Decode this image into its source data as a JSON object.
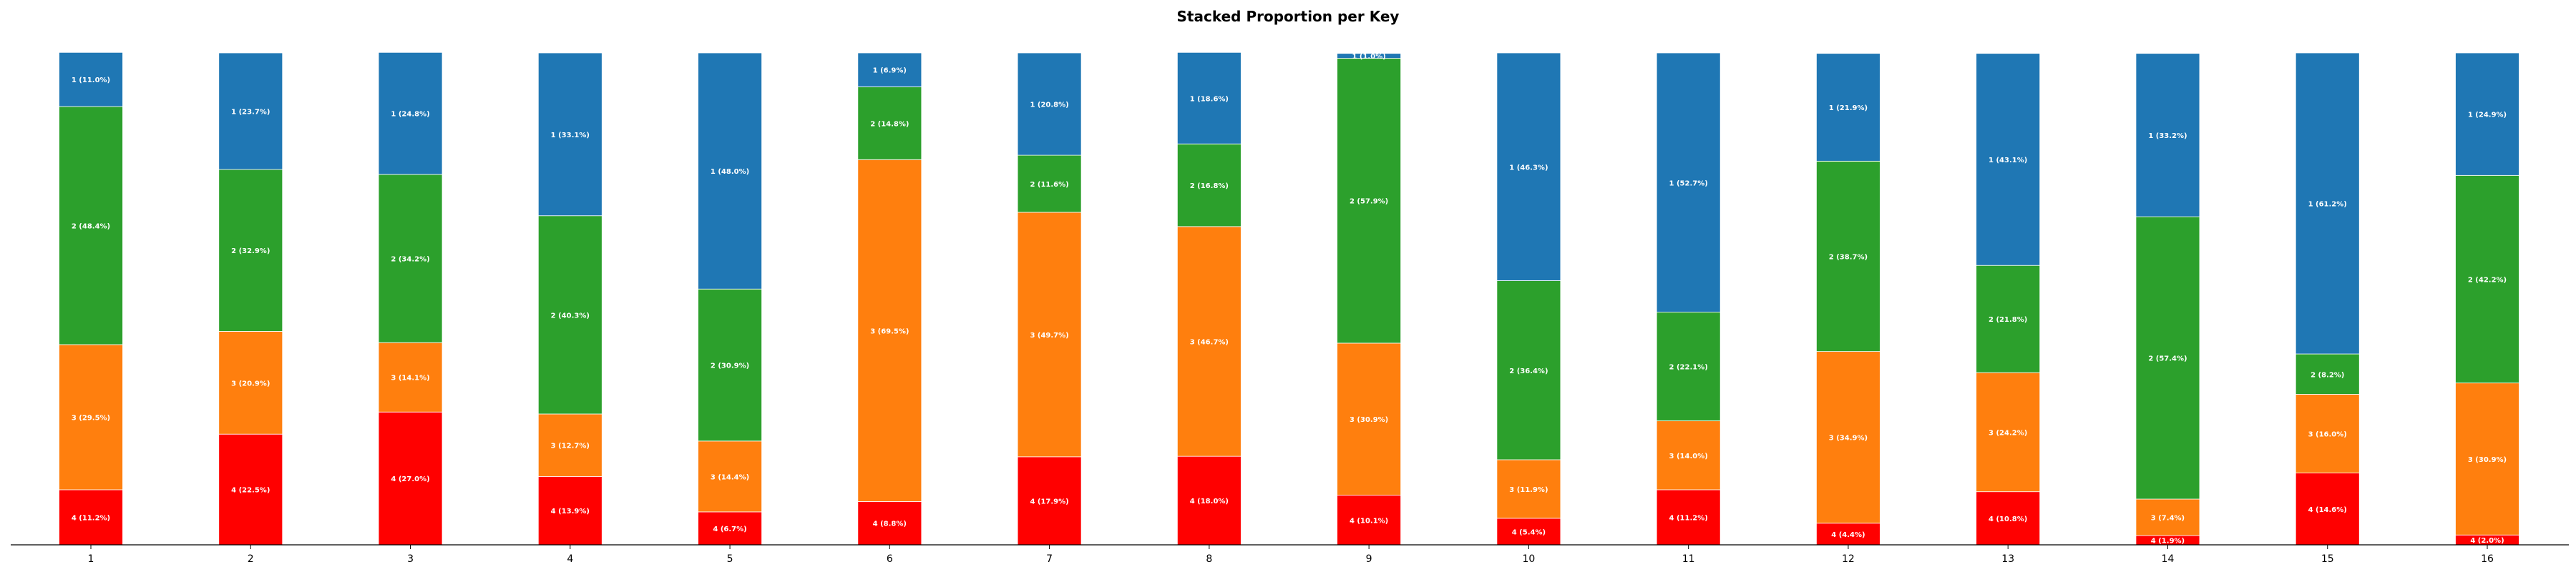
{
  "chart_data": {
    "type": "bar",
    "stacked": true,
    "title": "Stacked Proportion per Key",
    "xlabel": "",
    "ylabel": "",
    "ylim": [
      0,
      100
    ],
    "grid": false,
    "legend": "none",
    "categories": [
      "1",
      "2",
      "3",
      "4",
      "5",
      "6",
      "7",
      "8",
      "9",
      "10",
      "11",
      "12",
      "13",
      "14",
      "15",
      "16"
    ],
    "series": [
      {
        "name": "4",
        "color": "#ff0000",
        "values": [
          11.2,
          22.5,
          27.0,
          13.9,
          6.7,
          8.8,
          17.9,
          18.0,
          10.1,
          5.4,
          11.2,
          4.4,
          10.8,
          1.9,
          14.6,
          2.0
        ]
      },
      {
        "name": "3",
        "color": "#ff7f0e",
        "values": [
          29.5,
          20.9,
          14.1,
          12.7,
          14.4,
          69.5,
          49.7,
          46.7,
          30.9,
          11.9,
          14.0,
          34.9,
          24.2,
          7.4,
          16.0,
          30.9
        ]
      },
      {
        "name": "2",
        "color": "#2ca02c",
        "values": [
          48.4,
          32.9,
          34.2,
          40.3,
          30.9,
          14.8,
          11.6,
          16.8,
          57.9,
          36.4,
          22.1,
          38.7,
          21.8,
          57.4,
          8.2,
          42.2
        ]
      },
      {
        "name": "1",
        "color": "#1f77b4",
        "values": [
          11.0,
          23.7,
          24.8,
          33.1,
          48.0,
          6.9,
          20.8,
          18.6,
          1.0,
          46.3,
          52.7,
          21.9,
          43.1,
          33.2,
          61.2,
          24.9
        ]
      }
    ]
  }
}
